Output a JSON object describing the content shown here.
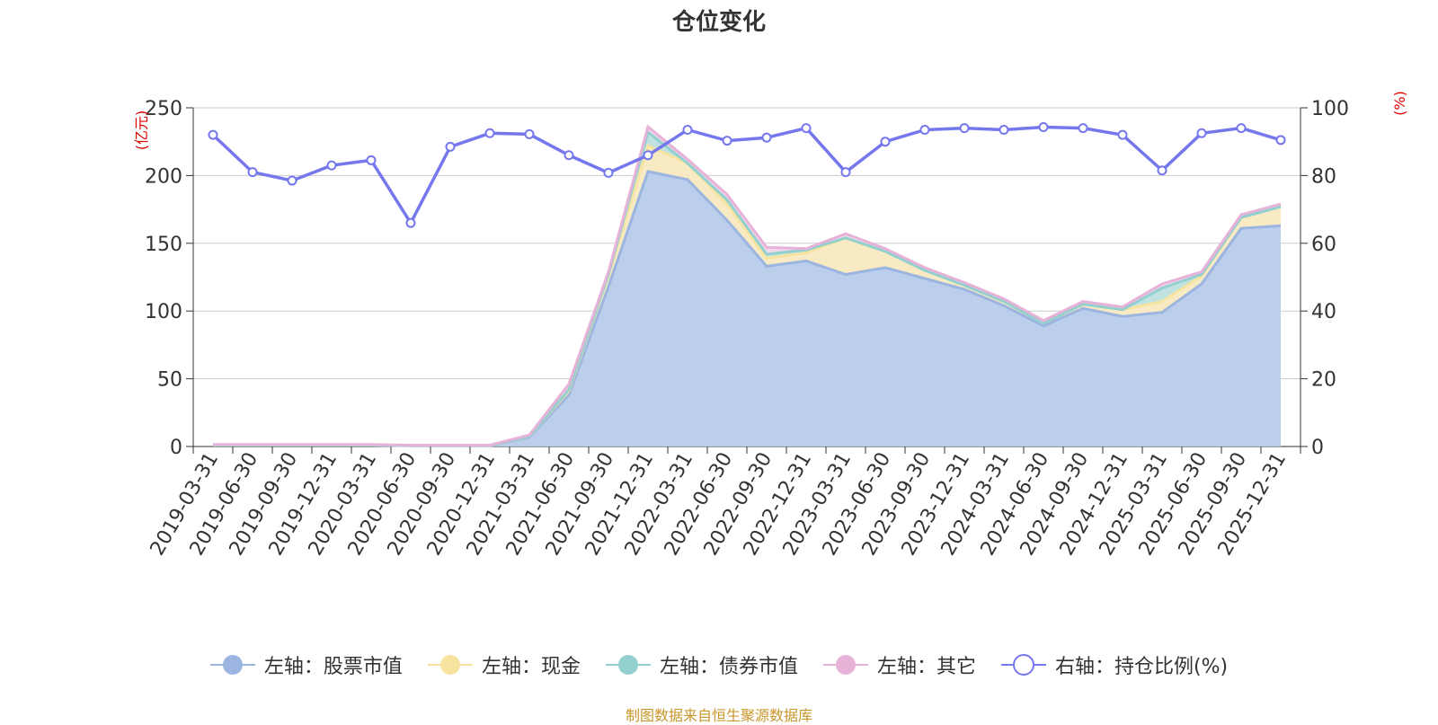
{
  "chart_data": {
    "type": "area",
    "title": "仓位变化",
    "left_axis_unit": "(亿元)",
    "right_axis_unit": "(%)",
    "ylim_left": [
      0,
      250
    ],
    "ylim_right": [
      0,
      100
    ],
    "yticks_left": [
      "0",
      "50",
      "100",
      "150",
      "200",
      "250"
    ],
    "yticks_right": [
      "0",
      "20",
      "40",
      "60",
      "80",
      "100"
    ],
    "categories": [
      "2019-03-31",
      "2019-06-30",
      "2019-09-30",
      "2019-12-31",
      "2020-03-31",
      "2020-06-30",
      "2020-09-30",
      "2020-12-31",
      "2021-03-31",
      "2021-06-30",
      "2021-09-30",
      "2021-12-31",
      "2022-03-31",
      "2022-06-30",
      "2022-09-30",
      "2022-12-31",
      "2023-03-31",
      "2023-06-30",
      "2023-09-30",
      "2023-12-31",
      "2024-03-31",
      "2024-06-30",
      "2024-09-30",
      "2024-12-31",
      "2025-03-31",
      "2025-06-30",
      "2025-09-30",
      "2025-12-31"
    ],
    "series": [
      {
        "name": "左轴：股票市值",
        "axis": "left",
        "stack": true,
        "color": "#9bb5e0",
        "fill": "#b7cbea",
        "values": [
          1,
          1,
          1,
          1,
          1,
          0.5,
          0.5,
          0.5,
          7,
          38,
          118,
          203,
          197,
          167,
          133,
          137,
          127,
          132,
          124,
          116,
          104,
          89,
          102,
          96,
          99,
          120,
          161,
          163
        ]
      },
      {
        "name": "左轴：现金",
        "axis": "left",
        "stack": true,
        "color": "#f6e3a0",
        "fill": "#f8eac0",
        "values": [
          0.2,
          0.2,
          0.2,
          0.2,
          0.2,
          0.2,
          0.2,
          0.2,
          0.5,
          3,
          8,
          19,
          12,
          12,
          6,
          6,
          27,
          12,
          6,
          3,
          3,
          2,
          3,
          5,
          8,
          6,
          8,
          14
        ]
      },
      {
        "name": "左轴：债券市值",
        "axis": "left",
        "stack": true,
        "color": "#92d0d0",
        "fill": "#bde2e0",
        "values": [
          0,
          0,
          0,
          0,
          0,
          0,
          0,
          0,
          0,
          1,
          1,
          10,
          0,
          3,
          3,
          2,
          0,
          0,
          0,
          0,
          0,
          0,
          0,
          0,
          10,
          1,
          0,
          0
        ]
      },
      {
        "name": "左轴：其它",
        "axis": "left",
        "stack": true,
        "color": "#e6b2d8",
        "fill": "#f2d5ea",
        "values": [
          0.3,
          0.3,
          0.3,
          0.3,
          0.3,
          0.3,
          0.3,
          0.3,
          1,
          4,
          2,
          4,
          3,
          4,
          5,
          1,
          3,
          2,
          2,
          2,
          2,
          2,
          2,
          2,
          3,
          2,
          2,
          2
        ]
      },
      {
        "name": "右轴：持仓比例(%)",
        "axis": "right",
        "stack": false,
        "color": "#7577ec",
        "fill": "#ffffff",
        "values": [
          92,
          81,
          78.5,
          83,
          84.5,
          66,
          88.5,
          92.5,
          92.2,
          86,
          80.8,
          86,
          93.5,
          90.3,
          91.2,
          94,
          81,
          90,
          93.5,
          94,
          93.5,
          94.3,
          94,
          92,
          81.5,
          92.5,
          94,
          90.5
        ]
      }
    ]
  },
  "source_text": "制图数据来自恒生聚源数据库"
}
